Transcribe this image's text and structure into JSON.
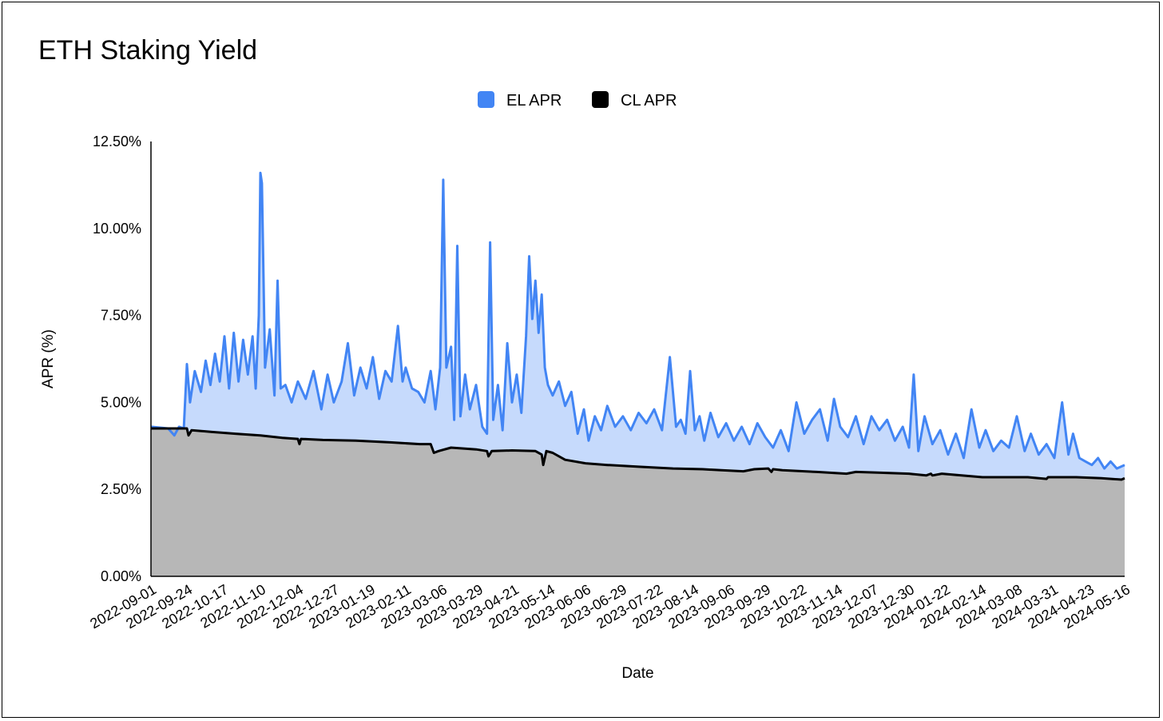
{
  "chart_data": {
    "type": "area",
    "title": "ETH Staking Yield",
    "xlabel": "Date",
    "ylabel": "APR (%)",
    "ylim": [
      0,
      12.5
    ],
    "yticks": [
      "0.00%",
      "2.50%",
      "5.00%",
      "7.50%",
      "10.00%",
      "12.50%"
    ],
    "yticks_values": [
      0,
      2.5,
      5,
      7.5,
      10,
      12.5
    ],
    "xlim": [
      "2022-09-01",
      "2024-05-16"
    ],
    "xticks": [
      "2022-09-01",
      "2022-09-24",
      "2022-10-17",
      "2022-11-10",
      "2022-12-04",
      "2022-12-27",
      "2023-01-19",
      "2023-02-11",
      "2023-03-06",
      "2023-03-29",
      "2023-04-21",
      "2023-05-14",
      "2023-06-06",
      "2023-06-29",
      "2023-07-22",
      "2023-08-14",
      "2023-09-06",
      "2023-09-29",
      "2023-10-22",
      "2023-11-14",
      "2023-12-07",
      "2023-12-30",
      "2024-01-22",
      "2024-02-14",
      "2024-03-08",
      "2024-03-31",
      "2024-04-23",
      "2024-05-16"
    ],
    "legend_position": "top-center",
    "grid": false,
    "stacked": false,
    "series": [
      {
        "name": "EL APR",
        "line_color": "#4285f4",
        "fill_color": "#c6dafc",
        "x": [
          "2022-09-01",
          "2022-09-12",
          "2022-09-16",
          "2022-09-19",
          "2022-09-22",
          "2022-09-24",
          "2022-09-26",
          "2022-09-29",
          "2022-10-03",
          "2022-10-06",
          "2022-10-09",
          "2022-10-12",
          "2022-10-15",
          "2022-10-18",
          "2022-10-21",
          "2022-10-24",
          "2022-10-27",
          "2022-10-30",
          "2022-11-02",
          "2022-11-05",
          "2022-11-07",
          "2022-11-09",
          "2022-11-10",
          "2022-11-11",
          "2022-11-13",
          "2022-11-16",
          "2022-11-19",
          "2022-11-21",
          "2022-11-23",
          "2022-11-26",
          "2022-11-30",
          "2022-12-04",
          "2022-12-09",
          "2022-12-14",
          "2022-12-19",
          "2022-12-23",
          "2022-12-27",
          "2023-01-01",
          "2023-01-05",
          "2023-01-09",
          "2023-01-13",
          "2023-01-17",
          "2023-01-21",
          "2023-01-25",
          "2023-01-29",
          "2023-02-02",
          "2023-02-06",
          "2023-02-09",
          "2023-02-11",
          "2023-02-15",
          "2023-02-19",
          "2023-02-23",
          "2023-02-27",
          "2023-03-02",
          "2023-03-05",
          "2023-03-07",
          "2023-03-09",
          "2023-03-12",
          "2023-03-14",
          "2023-03-16",
          "2023-03-18",
          "2023-03-21",
          "2023-03-24",
          "2023-03-28",
          "2023-04-01",
          "2023-04-04",
          "2023-04-06",
          "2023-04-08",
          "2023-04-11",
          "2023-04-14",
          "2023-04-17",
          "2023-04-20",
          "2023-04-23",
          "2023-04-26",
          "2023-04-29",
          "2023-05-01",
          "2023-05-03",
          "2023-05-05",
          "2023-05-07",
          "2023-05-09",
          "2023-05-11",
          "2023-05-13",
          "2023-05-16",
          "2023-05-20",
          "2023-05-24",
          "2023-05-28",
          "2023-06-01",
          "2023-06-05",
          "2023-06-08",
          "2023-06-12",
          "2023-06-16",
          "2023-06-20",
          "2023-06-25",
          "2023-06-30",
          "2023-07-05",
          "2023-07-10",
          "2023-07-15",
          "2023-07-20",
          "2023-07-25",
          "2023-07-30",
          "2023-08-03",
          "2023-08-06",
          "2023-08-09",
          "2023-08-12",
          "2023-08-15",
          "2023-08-18",
          "2023-08-21",
          "2023-08-25",
          "2023-08-30",
          "2023-09-04",
          "2023-09-09",
          "2023-09-14",
          "2023-09-19",
          "2023-09-24",
          "2023-09-29",
          "2023-10-04",
          "2023-10-09",
          "2023-10-14",
          "2023-10-19",
          "2023-10-24",
          "2023-10-29",
          "2023-11-03",
          "2023-11-08",
          "2023-11-12",
          "2023-11-16",
          "2023-11-21",
          "2023-11-26",
          "2023-12-01",
          "2023-12-06",
          "2023-12-11",
          "2023-12-16",
          "2023-12-21",
          "2023-12-26",
          "2023-12-30",
          "2024-01-02",
          "2024-01-05",
          "2024-01-09",
          "2024-01-14",
          "2024-01-19",
          "2024-01-24",
          "2024-01-29",
          "2024-02-03",
          "2024-02-08",
          "2024-02-13",
          "2024-02-17",
          "2024-02-22",
          "2024-02-27",
          "2024-03-03",
          "2024-03-08",
          "2024-03-13",
          "2024-03-17",
          "2024-03-22",
          "2024-03-27",
          "2024-04-01",
          "2024-04-06",
          "2024-04-10",
          "2024-04-13",
          "2024-04-17",
          "2024-04-21",
          "2024-04-25",
          "2024-04-29",
          "2024-05-03",
          "2024-05-07",
          "2024-05-11",
          "2024-05-16"
        ],
        "values": [
          4.3,
          4.25,
          4.05,
          4.3,
          4.25,
          6.1,
          5.0,
          5.9,
          5.3,
          6.2,
          5.5,
          6.4,
          5.6,
          6.9,
          5.4,
          7.0,
          5.6,
          6.8,
          5.8,
          6.9,
          5.4,
          7.5,
          11.6,
          11.3,
          6.0,
          7.1,
          5.2,
          8.5,
          5.4,
          5.5,
          5.0,
          5.6,
          5.1,
          5.9,
          4.8,
          5.8,
          5.0,
          5.6,
          6.7,
          5.2,
          6.0,
          5.4,
          6.3,
          5.1,
          5.9,
          5.6,
          7.2,
          5.6,
          6.0,
          5.4,
          5.3,
          5.0,
          5.9,
          4.8,
          6.0,
          11.4,
          6.0,
          6.6,
          4.5,
          9.5,
          4.6,
          5.8,
          4.8,
          5.5,
          4.3,
          4.1,
          9.6,
          4.5,
          5.5,
          4.2,
          6.7,
          5.0,
          5.8,
          4.7,
          6.9,
          9.2,
          7.4,
          8.5,
          7.0,
          8.1,
          6.0,
          5.5,
          5.2,
          5.6,
          4.9,
          5.3,
          4.1,
          4.8,
          3.9,
          4.6,
          4.2,
          4.9,
          4.3,
          4.6,
          4.2,
          4.7,
          4.4,
          4.8,
          4.2,
          6.3,
          4.3,
          4.5,
          4.1,
          5.9,
          4.2,
          4.6,
          3.9,
          4.7,
          4.0,
          4.4,
          3.9,
          4.3,
          3.8,
          4.4,
          4.0,
          3.7,
          4.2,
          3.6,
          5.0,
          4.1,
          4.5,
          4.8,
          3.9,
          5.1,
          4.3,
          4.0,
          4.6,
          3.8,
          4.6,
          4.2,
          4.5,
          3.9,
          4.3,
          3.7,
          5.8,
          3.6,
          4.6,
          3.8,
          4.2,
          3.5,
          4.1,
          3.4,
          4.8,
          3.7,
          4.2,
          3.6,
          3.9,
          3.7,
          4.6,
          3.6,
          4.1,
          3.5,
          3.8,
          3.4,
          5.0,
          3.5,
          4.1,
          3.4,
          3.3,
          3.2,
          3.4,
          3.1,
          3.3,
          3.1,
          3.2
        ]
      },
      {
        "name": "CL APR",
        "line_color": "#000000",
        "fill_color": "#b7b7b7",
        "x": [
          "2022-09-01",
          "2022-09-24",
          "2022-09-25",
          "2022-09-27",
          "2022-10-10",
          "2022-10-25",
          "2022-11-10",
          "2022-11-24",
          "2022-12-04",
          "2022-12-05",
          "2022-12-06",
          "2022-12-20",
          "2023-01-10",
          "2023-02-01",
          "2023-02-20",
          "2023-02-27",
          "2023-03-01",
          "2023-03-04",
          "2023-03-12",
          "2023-03-28",
          "2023-04-04",
          "2023-04-05",
          "2023-04-07",
          "2023-04-20",
          "2023-05-05",
          "2023-05-09",
          "2023-05-10",
          "2023-05-12",
          "2023-05-16",
          "2023-05-24",
          "2023-06-06",
          "2023-06-20",
          "2023-07-10",
          "2023-08-01",
          "2023-08-20",
          "2023-09-01",
          "2023-09-15",
          "2023-09-22",
          "2023-10-01",
          "2023-10-03",
          "2023-10-04",
          "2023-10-10",
          "2023-11-01",
          "2023-11-20",
          "2023-11-26",
          "2023-12-10",
          "2023-12-30",
          "2024-01-10",
          "2024-01-13",
          "2024-01-14",
          "2024-01-20",
          "2024-02-15",
          "2024-03-15",
          "2024-03-27",
          "2024-03-28",
          "2024-04-15",
          "2024-05-01",
          "2024-05-14",
          "2024-05-16"
        ],
        "values": [
          4.25,
          4.25,
          4.05,
          4.2,
          4.15,
          4.1,
          4.05,
          3.98,
          3.95,
          3.8,
          3.95,
          3.92,
          3.9,
          3.85,
          3.8,
          3.8,
          3.55,
          3.6,
          3.7,
          3.65,
          3.6,
          3.45,
          3.6,
          3.62,
          3.6,
          3.5,
          3.2,
          3.6,
          3.55,
          3.35,
          3.25,
          3.2,
          3.15,
          3.1,
          3.08,
          3.05,
          3.02,
          3.08,
          3.1,
          3.0,
          3.08,
          3.05,
          3.0,
          2.95,
          3.0,
          2.98,
          2.95,
          2.9,
          2.95,
          2.9,
          2.95,
          2.85,
          2.85,
          2.8,
          2.85,
          2.85,
          2.82,
          2.78,
          2.82
        ]
      }
    ]
  }
}
